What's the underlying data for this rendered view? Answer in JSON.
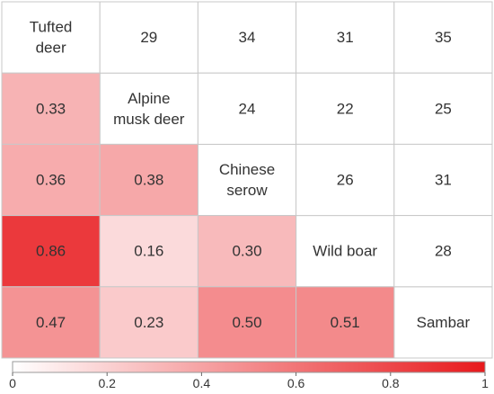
{
  "chart_data": {
    "type": "heatmap",
    "title": "",
    "species": [
      "Tufted deer",
      "Alpine musk deer",
      "Chinese serow",
      "Wild boar",
      "Sambar"
    ],
    "diagonal_lines": [
      [
        "Tufted",
        "deer"
      ],
      [
        "Alpine",
        "musk deer"
      ],
      [
        "Chinese",
        "serow"
      ],
      [
        "Wild boar"
      ],
      [
        "Sambar"
      ]
    ],
    "upper_triangle": [
      {
        "row": 0,
        "col": 1,
        "value": 29
      },
      {
        "row": 0,
        "col": 2,
        "value": 34
      },
      {
        "row": 0,
        "col": 3,
        "value": 31
      },
      {
        "row": 0,
        "col": 4,
        "value": 35
      },
      {
        "row": 1,
        "col": 2,
        "value": 24
      },
      {
        "row": 1,
        "col": 3,
        "value": 22
      },
      {
        "row": 1,
        "col": 4,
        "value": 25
      },
      {
        "row": 2,
        "col": 3,
        "value": 26
      },
      {
        "row": 2,
        "col": 4,
        "value": 31
      },
      {
        "row": 3,
        "col": 4,
        "value": 28
      }
    ],
    "lower_triangle": [
      {
        "row": 1,
        "col": 0,
        "value": 0.33,
        "label": "0.33"
      },
      {
        "row": 2,
        "col": 0,
        "value": 0.36,
        "label": "0.36"
      },
      {
        "row": 2,
        "col": 1,
        "value": 0.38,
        "label": "0.38"
      },
      {
        "row": 3,
        "col": 0,
        "value": 0.86,
        "label": "0.86"
      },
      {
        "row": 3,
        "col": 1,
        "value": 0.16,
        "label": "0.16"
      },
      {
        "row": 3,
        "col": 2,
        "value": 0.3,
        "label": "0.30"
      },
      {
        "row": 4,
        "col": 0,
        "value": 0.47,
        "label": "0.47"
      },
      {
        "row": 4,
        "col": 1,
        "value": 0.23,
        "label": "0.23"
      },
      {
        "row": 4,
        "col": 2,
        "value": 0.5,
        "label": "0.50"
      },
      {
        "row": 4,
        "col": 3,
        "value": 0.51,
        "label": "0.51"
      }
    ],
    "colorbar": {
      "range": [
        0,
        1
      ],
      "ticks": [
        0,
        0.2,
        0.4,
        0.6,
        0.8,
        1
      ],
      "tick_labels": [
        "0",
        "0.2",
        "0.4",
        "0.6",
        "0.8",
        "1"
      ],
      "color_low": "#ffffff",
      "color_high": "#e8191c",
      "position": "bottom"
    },
    "grid_color": "#c8c8c8"
  }
}
